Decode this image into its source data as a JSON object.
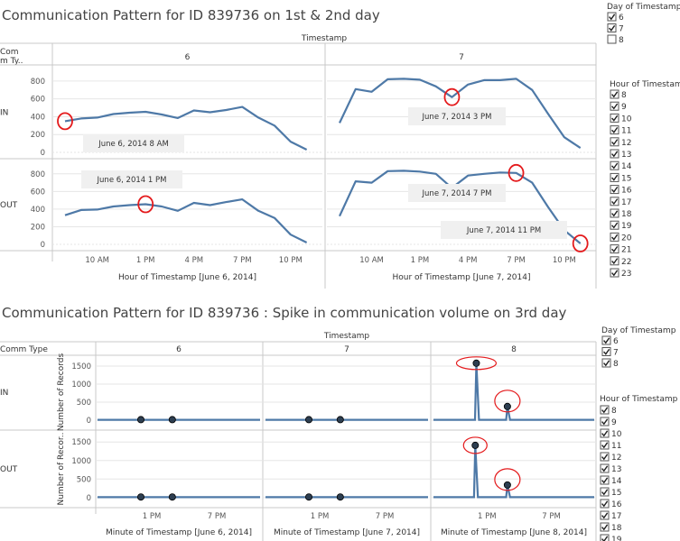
{
  "colors": {
    "line": "#4e79a7",
    "grid": "#e6e6e6",
    "divider": "#c8c8c8",
    "circle": "#e41a1c",
    "annbox": "#f0f0f0",
    "marker": "#2d3e50"
  },
  "chart_data": [
    {
      "type": "line",
      "title": "Communication Pattern for ID 839736 on 1st & 2nd day",
      "column_header": "Timestamp",
      "row_header": "Com\nm Ty..",
      "columns": [
        "6",
        "7"
      ],
      "rows": [
        "IN",
        "OUT"
      ],
      "ylim": [
        0,
        900
      ],
      "y_ticks": [
        0,
        200,
        400,
        600,
        800
      ],
      "x_ticks": [
        "10 AM",
        "1 PM",
        "4 PM",
        "7 PM",
        "10 PM"
      ],
      "xlabels": [
        "Hour of Timestamp [June 6, 2014]",
        "Hour of Timestamp [June 7, 2014]"
      ],
      "x": [
        8,
        9,
        10,
        11,
        12,
        13,
        14,
        15,
        16,
        17,
        18,
        19,
        20,
        21,
        22,
        23
      ],
      "series": [
        {
          "day": "6",
          "comm": "IN",
          "values": [
            350,
            380,
            390,
            430,
            445,
            455,
            425,
            385,
            470,
            450,
            475,
            510,
            390,
            300,
            120,
            30
          ]
        },
        {
          "day": "7",
          "comm": "IN",
          "values": [
            330,
            710,
            680,
            820,
            825,
            815,
            740,
            620,
            760,
            810,
            810,
            825,
            700,
            430,
            170,
            50
          ]
        },
        {
          "day": "6",
          "comm": "OUT",
          "values": [
            330,
            390,
            395,
            430,
            445,
            455,
            430,
            380,
            470,
            445,
            480,
            510,
            380,
            300,
            110,
            20
          ]
        },
        {
          "day": "7",
          "comm": "OUT",
          "values": [
            320,
            715,
            700,
            830,
            835,
            825,
            800,
            640,
            780,
            800,
            815,
            810,
            700,
            420,
            160,
            10
          ]
        }
      ],
      "annotations": [
        {
          "panel": "6-IN",
          "text": "June 6, 2014 8 AM",
          "x": 8,
          "y": 350
        },
        {
          "panel": "7-IN",
          "text": "June 7, 2014 3 PM",
          "x": 15,
          "y": 620
        },
        {
          "panel": "6-OUT",
          "text": "June 6, 2014 1 PM",
          "x": 13,
          "y": 455
        },
        {
          "panel": "7-OUT",
          "text": "June 7, 2014 7 PM",
          "x": 19,
          "y": 810
        },
        {
          "panel": "7-OUT",
          "text": "June 7, 2014 11 PM",
          "x": 23,
          "y": 10
        }
      ]
    },
    {
      "type": "line",
      "title": "Communication Pattern for ID 839736 : Spike in communication volume on 3rd day",
      "column_header": "Timestamp",
      "row_header": "Comm Type",
      "columns": [
        "6",
        "7",
        "8"
      ],
      "rows": [
        "IN",
        "OUT"
      ],
      "ylabels": [
        "Number of Records",
        "Number of Recor.."
      ],
      "ylim": [
        -150,
        1700
      ],
      "y_ticks": [
        0,
        500,
        1000,
        1500
      ],
      "x_ticks": [
        "1 PM",
        "7 PM"
      ],
      "xlabels": [
        "Minute of Timestamp [June 6, 2014]",
        "Minute of Timestamp [June 7, 2014]",
        "Minute of Timestamp [June 8, 2014]"
      ],
      "x_range_hours": [
        8,
        23
      ],
      "spikes": [
        {
          "day": "8",
          "comm": "IN",
          "points": [
            {
              "hour": 12.0,
              "value": 1580
            },
            {
              "hour": 14.9,
              "value": 380
            }
          ]
        },
        {
          "day": "8",
          "comm": "OUT",
          "points": [
            {
              "hour": 11.9,
              "value": 1410
            },
            {
              "hour": 14.9,
              "value": 340
            }
          ]
        }
      ],
      "markers": [
        {
          "day": "6",
          "comm": "IN",
          "hours": [
            12.0,
            14.9
          ],
          "value": 15
        },
        {
          "day": "7",
          "comm": "IN",
          "hours": [
            12.0,
            14.9
          ],
          "value": 15
        },
        {
          "day": "6",
          "comm": "OUT",
          "hours": [
            12.0,
            14.9
          ],
          "value": 15
        },
        {
          "day": "7",
          "comm": "OUT",
          "hours": [
            12.0,
            14.9
          ],
          "value": 15
        }
      ]
    }
  ],
  "filters_top": {
    "day_title": "Day of Timestamp",
    "days": [
      {
        "label": "6",
        "checked": true
      },
      {
        "label": "7",
        "checked": true
      },
      {
        "label": "8",
        "checked": false
      }
    ],
    "hour_title": "Hour of Timestamp",
    "hours": [
      "8",
      "9",
      "10",
      "11",
      "12",
      "13",
      "14",
      "15",
      "16",
      "17",
      "18",
      "19",
      "20",
      "21",
      "22",
      "23"
    ]
  },
  "filters_bottom": {
    "day_title": "Day of Timestamp",
    "days": [
      {
        "label": "6",
        "checked": true
      },
      {
        "label": "7",
        "checked": true
      },
      {
        "label": "8",
        "checked": true
      }
    ],
    "hour_title": "Hour of Timestamp",
    "hours": [
      "8",
      "9",
      "10",
      "11",
      "12",
      "13",
      "14",
      "15",
      "16",
      "17",
      "18",
      "19"
    ]
  }
}
